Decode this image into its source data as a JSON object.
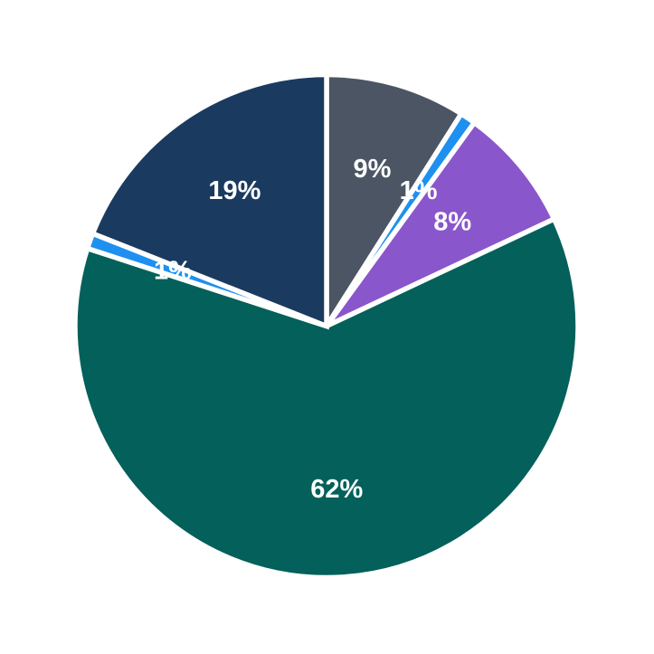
{
  "chart_data": {
    "type": "pie",
    "title": "",
    "start_angle_deg": 0,
    "direction": "clockwise",
    "label_radius_fraction": 0.65,
    "background_color": "#ffffff",
    "stroke_color": "#ffffff",
    "label_color": "#ffffff",
    "slices": [
      {
        "label": "9%",
        "value": 9,
        "color": "#4b5563"
      },
      {
        "label": "1%",
        "value": 1,
        "color": "#1e90f0"
      },
      {
        "label": "8%",
        "value": 8,
        "color": "#8a56cb"
      },
      {
        "label": "62%",
        "value": 62,
        "color": "#03605a"
      },
      {
        "label": "1%",
        "value": 1,
        "color": "#1e90f0"
      },
      {
        "label": "19%",
        "value": 19,
        "color": "#1b3a5f"
      }
    ]
  }
}
